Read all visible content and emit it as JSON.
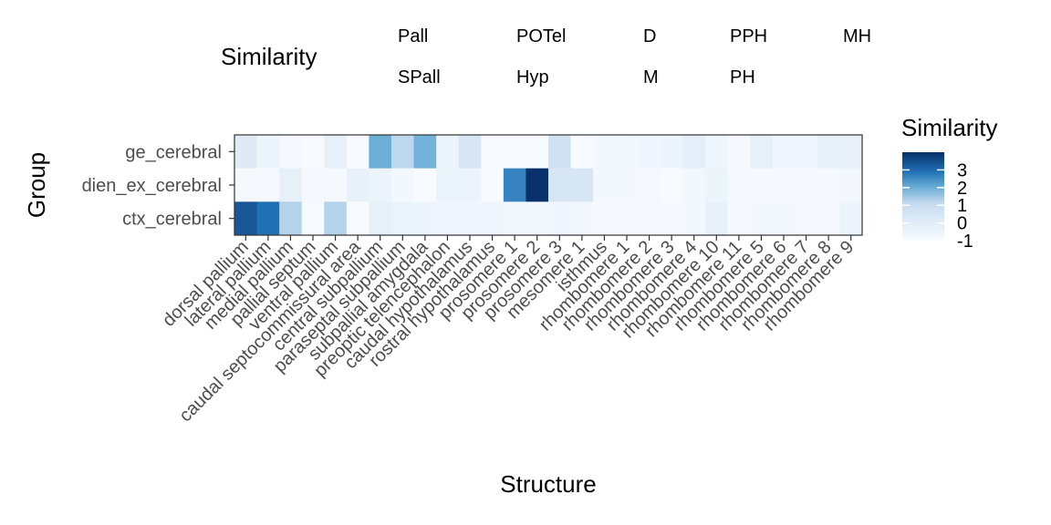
{
  "chart_data": {
    "type": "heatmap",
    "xlabel": "Structure",
    "ylabel": "Group",
    "categories": [
      "dorsal pallium",
      "lateral pallium",
      "medial pallium",
      "pallial septum",
      "ventral pallium",
      "caudal septocommissural area",
      "central subpallium",
      "paraseptal subpallium",
      "subpallial amygdala",
      "preoptic telencephalon",
      "caudal hypothalamus",
      "rostral hypothalamus",
      "prosomere 1",
      "prosomere 2",
      "prosomere 3",
      "mesomere 1",
      "isthmus",
      "rhombomere 1",
      "rhombomere 2",
      "rhombomere 3",
      "rhombomere 4",
      "rhombomere 10",
      "rhombomere 11",
      "rhombomere 5",
      "rhombomere 6",
      "rhombomere 7",
      "rhombomere 8",
      "rhombomere 9"
    ],
    "groups": [
      "ge_cerebral",
      "dien_ex_cerebral",
      "ctx_cerebral"
    ],
    "values": [
      [
        0.0,
        -0.6,
        -0.9,
        -1.0,
        -0.3,
        -1.0,
        2.0,
        1.1,
        1.9,
        -0.5,
        0.3,
        -1.0,
        -1.0,
        -1.0,
        0.6,
        -1.0,
        -0.8,
        -0.8,
        -0.7,
        -0.6,
        -0.2,
        -0.7,
        -0.9,
        -0.3,
        -0.7,
        -0.7,
        -0.4,
        -0.4
      ],
      [
        -0.9,
        -0.9,
        -0.3,
        -0.9,
        -0.9,
        -0.4,
        -0.5,
        -0.8,
        -1.0,
        -0.5,
        -0.5,
        -1.0,
        2.7,
        4.0,
        0.3,
        0.3,
        -0.8,
        -0.8,
        -0.9,
        -1.0,
        -0.8,
        -0.6,
        -0.9,
        -0.9,
        -0.9,
        -0.9,
        -0.9,
        -0.8
      ],
      [
        3.4,
        3.0,
        1.2,
        -1.0,
        1.2,
        -1.0,
        -0.3,
        -0.5,
        -0.6,
        -0.7,
        -0.7,
        -0.7,
        -0.8,
        -0.8,
        -0.7,
        -0.8,
        -0.9,
        -0.9,
        -0.9,
        -0.9,
        -0.8,
        -0.4,
        -0.9,
        -0.8,
        -0.8,
        -0.9,
        -0.9,
        -0.6
      ]
    ],
    "colorbar": {
      "title": "Similarity",
      "ticks": [
        3,
        2,
        1,
        0,
        -1
      ],
      "range": [
        -1,
        4
      ],
      "low_color": "#f7fbff",
      "high_color": "#08306b"
    },
    "legend": {
      "title": "Similarity",
      "labels": [
        "Pall",
        "POTel",
        "D",
        "PPH",
        "MH",
        "SPall",
        "Hyp",
        "M",
        "PH"
      ]
    }
  }
}
